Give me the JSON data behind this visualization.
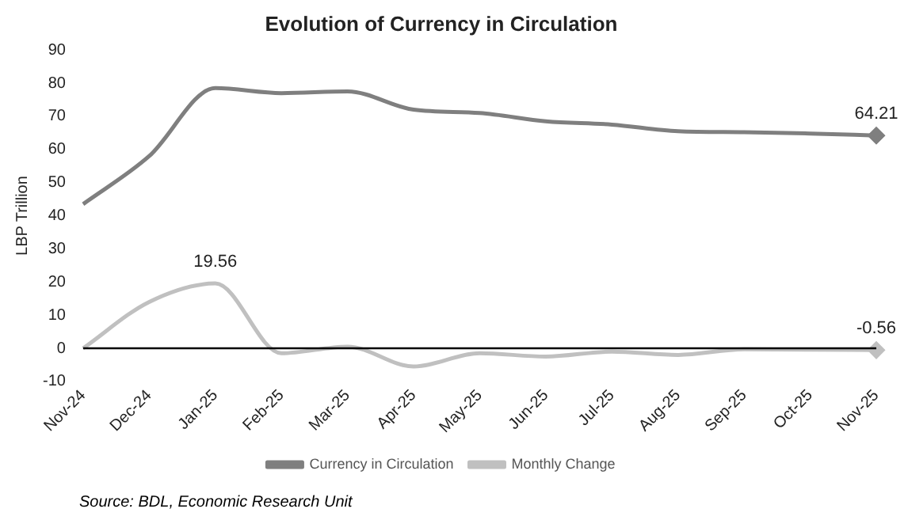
{
  "chart_data": {
    "type": "line",
    "title": "Evolution of Currency in Circulation",
    "ylabel": "LBP Trillion",
    "categories": [
      "Nov-24",
      "Dec-24",
      "Jan-25",
      "Feb-25",
      "Mar-25",
      "Apr-25",
      "May-25",
      "Jun-25",
      "Jul-25",
      "Aug-25",
      "Sep-25",
      "Oct-25",
      "Nov-25"
    ],
    "series": [
      {
        "name": "Currency in Circulation",
        "color": "#7f7f7f",
        "values": [
          43.5,
          58,
          78.5,
          77,
          77.5,
          72,
          71,
          68.5,
          67.5,
          65.5,
          65.2,
          64.8,
          64.21
        ],
        "value_labels": [
          null,
          null,
          null,
          null,
          null,
          null,
          null,
          null,
          null,
          null,
          null,
          null,
          "64.21"
        ]
      },
      {
        "name": "Monthly Change",
        "color": "#c0c0c0",
        "values": [
          0,
          14,
          19.56,
          -1.5,
          0.5,
          -5.5,
          -1.5,
          -2.5,
          -1,
          -2,
          -0.3,
          -0.4,
          -0.56
        ],
        "value_labels": [
          null,
          null,
          "19.56",
          null,
          null,
          null,
          null,
          null,
          null,
          null,
          null,
          null,
          "-0.56"
        ]
      }
    ],
    "ylim": [
      -10,
      90
    ],
    "yticks": [
      -10,
      0,
      10,
      20,
      30,
      40,
      50,
      60,
      70,
      80,
      90
    ],
    "grid": false,
    "legend": "bottom",
    "annotations": [
      "Source: BDL, Economic Research Unit"
    ]
  }
}
